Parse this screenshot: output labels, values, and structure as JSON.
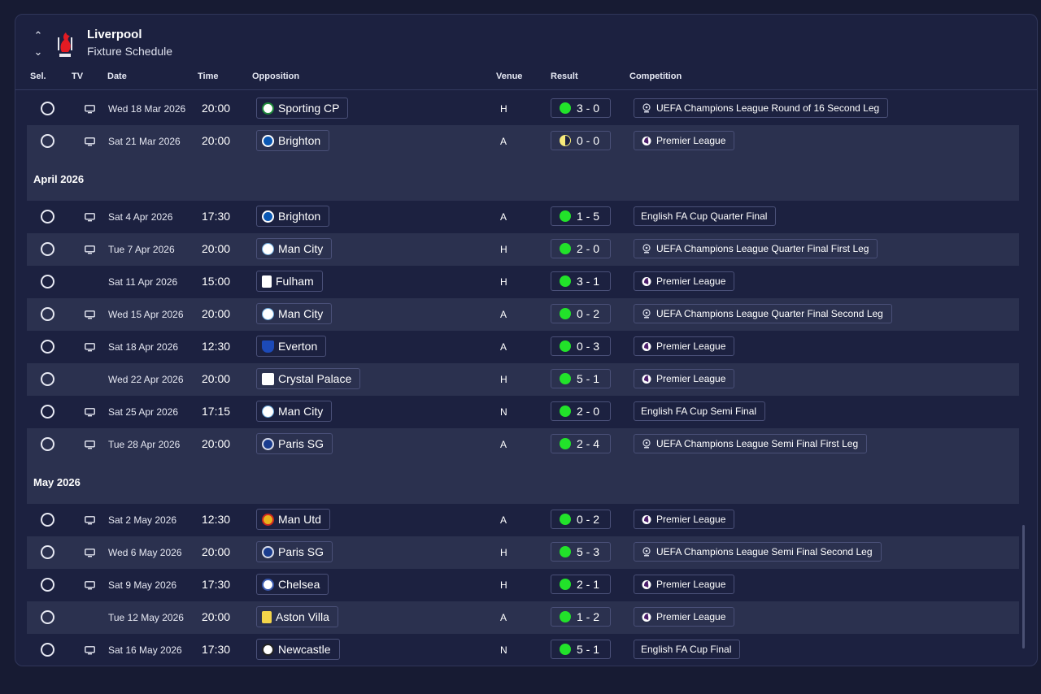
{
  "header": {
    "club": "Liverpool",
    "subtitle": "Fixture Schedule"
  },
  "columns": {
    "sel": "Sel.",
    "tv": "TV",
    "date": "Date",
    "time": "Time",
    "opposition": "Opposition",
    "venue": "Venue",
    "result": "Result",
    "competition": "Competition"
  },
  "colors": {
    "win": "#22e22a",
    "draw": "#f6ea7a",
    "panel": "#1c2140",
    "alt_row": "#2b314f"
  },
  "fixtures": [
    {
      "kind": "row",
      "tv": true,
      "date": "Wed 18 Mar 2026",
      "time": "20:00",
      "opposition": "Sporting CP",
      "badge": "sporting",
      "venue": "H",
      "result": "3 - 0",
      "outcome": "win",
      "competition": "UEFA Champions League Round of 16  Second Leg",
      "comp_icon": "ucl"
    },
    {
      "kind": "row",
      "tv": true,
      "date": "Sat 21 Mar 2026",
      "time": "20:00",
      "opposition": "Brighton",
      "badge": "brighton",
      "venue": "A",
      "result": "0 - 0",
      "outcome": "draw",
      "competition": "Premier League",
      "comp_icon": "pl"
    },
    {
      "kind": "month",
      "label": "April 2026"
    },
    {
      "kind": "row",
      "tv": true,
      "date": "Sat 4 Apr 2026",
      "time": "17:30",
      "opposition": "Brighton",
      "badge": "brighton",
      "venue": "A",
      "result": "1 - 5",
      "outcome": "win",
      "competition": "English FA Cup Quarter Final",
      "comp_icon": ""
    },
    {
      "kind": "row",
      "tv": true,
      "date": "Tue 7 Apr 2026",
      "time": "20:00",
      "opposition": "Man City",
      "badge": "mancity",
      "venue": "H",
      "result": "2 - 0",
      "outcome": "win",
      "competition": "UEFA Champions League Quarter Final First Leg",
      "comp_icon": "ucl"
    },
    {
      "kind": "row",
      "tv": false,
      "date": "Sat 11 Apr 2026",
      "time": "15:00",
      "opposition": "Fulham",
      "badge": "fulham",
      "venue": "H",
      "result": "3 - 1",
      "outcome": "win",
      "competition": "Premier League",
      "comp_icon": "pl"
    },
    {
      "kind": "row",
      "tv": true,
      "date": "Wed 15 Apr 2026",
      "time": "20:00",
      "opposition": "Man City",
      "badge": "mancity",
      "venue": "A",
      "result": "0 - 2",
      "outcome": "win",
      "competition": "UEFA Champions League Quarter Final Second Leg",
      "comp_icon": "ucl"
    },
    {
      "kind": "row",
      "tv": true,
      "date": "Sat 18 Apr 2026",
      "time": "12:30",
      "opposition": "Everton",
      "badge": "everton",
      "venue": "A",
      "result": "0 - 3",
      "outcome": "win",
      "competition": "Premier League",
      "comp_icon": "pl"
    },
    {
      "kind": "row",
      "tv": false,
      "date": "Wed 22 Apr 2026",
      "time": "20:00",
      "opposition": "Crystal Palace",
      "badge": "palace",
      "venue": "H",
      "result": "5 - 1",
      "outcome": "win",
      "competition": "Premier League",
      "comp_icon": "pl"
    },
    {
      "kind": "row",
      "tv": true,
      "date": "Sat 25 Apr 2026",
      "time": "17:15",
      "opposition": "Man City",
      "badge": "mancity",
      "venue": "N",
      "result": "2 - 0",
      "outcome": "win",
      "competition": "English FA Cup Semi Final",
      "comp_icon": ""
    },
    {
      "kind": "row",
      "tv": true,
      "date": "Tue 28 Apr 2026",
      "time": "20:00",
      "opposition": "Paris SG",
      "badge": "psg",
      "venue": "A",
      "result": "2 - 4",
      "outcome": "win",
      "competition": "UEFA Champions League Semi Final First Leg",
      "comp_icon": "ucl"
    },
    {
      "kind": "month",
      "label": "May 2026"
    },
    {
      "kind": "row",
      "tv": true,
      "date": "Sat 2 May 2026",
      "time": "12:30",
      "opposition": "Man Utd",
      "badge": "manutd",
      "venue": "A",
      "result": "0 - 2",
      "outcome": "win",
      "competition": "Premier League",
      "comp_icon": "pl"
    },
    {
      "kind": "row",
      "tv": true,
      "date": "Wed 6 May 2026",
      "time": "20:00",
      "opposition": "Paris SG",
      "badge": "psg",
      "venue": "H",
      "result": "5 - 3",
      "outcome": "win",
      "competition": "UEFA Champions League Semi Final Second Leg",
      "comp_icon": "ucl"
    },
    {
      "kind": "row",
      "tv": true,
      "date": "Sat 9 May 2026",
      "time": "17:30",
      "opposition": "Chelsea",
      "badge": "chelsea",
      "venue": "H",
      "result": "2 - 1",
      "outcome": "win",
      "competition": "Premier League",
      "comp_icon": "pl"
    },
    {
      "kind": "row",
      "tv": false,
      "date": "Tue 12 May 2026",
      "time": "20:00",
      "opposition": "Aston Villa",
      "badge": "villa",
      "venue": "A",
      "result": "1 - 2",
      "outcome": "win",
      "competition": "Premier League",
      "comp_icon": "pl"
    },
    {
      "kind": "row",
      "tv": true,
      "date": "Sat 16 May 2026",
      "time": "17:30",
      "opposition": "Newcastle",
      "badge": "newcastle",
      "venue": "N",
      "result": "5 - 1",
      "outcome": "win",
      "competition": "English FA Cup Final",
      "comp_icon": ""
    }
  ]
}
